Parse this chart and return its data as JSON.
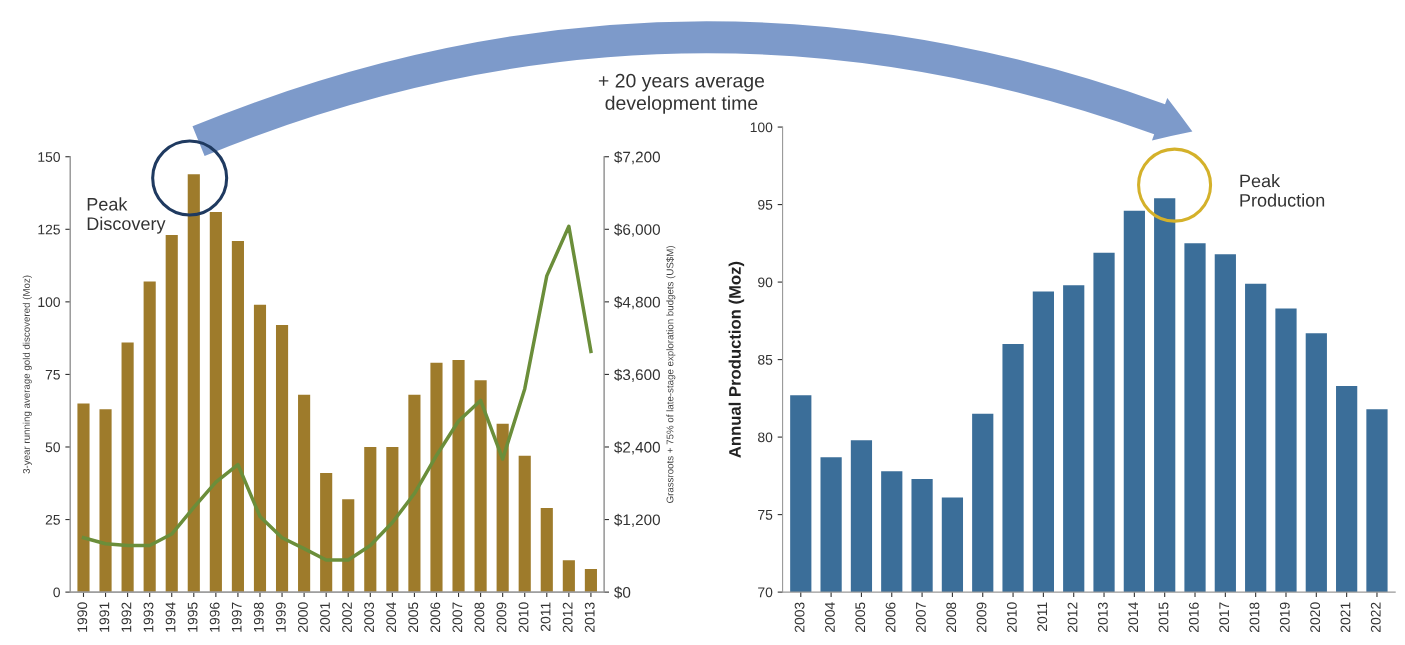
{
  "chart_data": [
    {
      "type": "bar",
      "ylabel": "3-year running average gold discovered (Moz)",
      "y2label": "Grassroots + 75% of late-stage exploration budgets (US$M)",
      "categories": [
        "1990",
        "1991",
        "1992",
        "1993",
        "1994",
        "1995",
        "1996",
        "1997",
        "1998",
        "1999",
        "2000",
        "2001",
        "2002",
        "2003",
        "2004",
        "2005",
        "2006",
        "2007",
        "2008",
        "2009",
        "2010",
        "2011",
        "2012",
        "2013"
      ],
      "series": [
        {
          "color": "#9e7b2b",
          "values": [
            65,
            63,
            86,
            107,
            123,
            144,
            131,
            121,
            99,
            92,
            68,
            41,
            32,
            50,
            50,
            68,
            79,
            80,
            73,
            58,
            47,
            29,
            11,
            8
          ]
        },
        {
          "type": "line",
          "axis": "y2",
          "color": "#6b8e3a",
          "values": [
            900,
            800,
            770,
            770,
            960,
            1400,
            1820,
            2110,
            1250,
            900,
            720,
            530,
            530,
            770,
            1150,
            1630,
            2260,
            2830,
            3170,
            2200,
            3360,
            5230,
            6050,
            3980
          ]
        }
      ],
      "ylim": [
        0,
        150
      ],
      "yticks": [
        0,
        25,
        50,
        75,
        100,
        125,
        150
      ],
      "y2lim": [
        0,
        7200
      ],
      "y2ticks": [
        {
          "value": 0,
          "label": "$0"
        },
        {
          "value": 1200,
          "label": "$1,200"
        },
        {
          "value": 2400,
          "label": "$2,400"
        },
        {
          "value": 3600,
          "label": "$3,600"
        },
        {
          "value": 4800,
          "label": "$4,800"
        },
        {
          "value": 6000,
          "label": "$6,000"
        },
        {
          "value": 7200,
          "label": "$7,200"
        }
      ],
      "annotations": [
        "Peak\nDiscovery",
        "+ 20 years average\ndevelopment time"
      ],
      "marker": "none",
      "line_style": "solid"
    },
    {
      "type": "bar",
      "ylabel": "Annual Production (Moz)",
      "categories": [
        "2003",
        "2004",
        "2005",
        "2006",
        "2007",
        "2008",
        "2009",
        "2010",
        "2011",
        "2012",
        "2013",
        "2014",
        "2015",
        "2016",
        "2017",
        "2018",
        "2019",
        "2020",
        "2021",
        "2022"
      ],
      "series": [
        {
          "color": "#3b6e99",
          "values": [
            82.7,
            78.7,
            79.8,
            77.8,
            77.3,
            76.1,
            81.5,
            86.0,
            89.4,
            89.8,
            91.9,
            94.6,
            95.4,
            92.5,
            91.8,
            89.9,
            88.3,
            86.7,
            83.3,
            81.8
          ]
        }
      ],
      "ylim": [
        70,
        100
      ],
      "yticks": [
        70,
        75,
        80,
        85,
        90,
        95,
        100
      ],
      "annotations": [
        "Peak\nProduction"
      ]
    }
  ]
}
